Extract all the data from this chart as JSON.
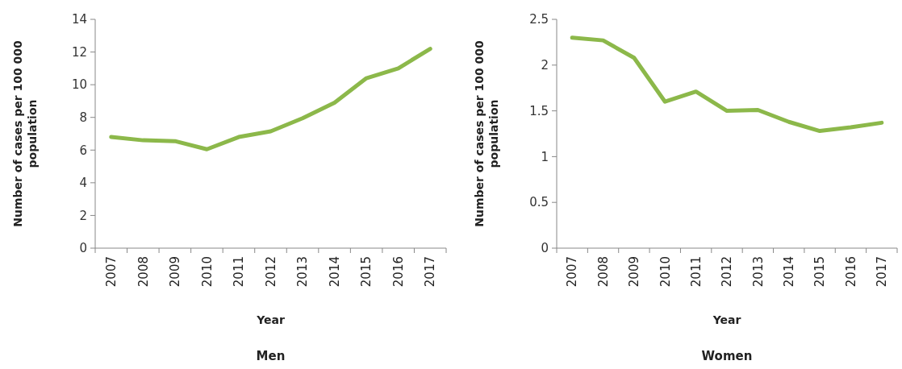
{
  "chart_data": [
    {
      "type": "line",
      "title": "Men",
      "xlabel": "Year",
      "ylabel": "Number of cases per 100 000 population",
      "categories": [
        "2007",
        "2008",
        "2009",
        "2010",
        "2011",
        "2012",
        "2013",
        "2014",
        "2015",
        "2016",
        "2017"
      ],
      "series": [
        {
          "color": "#8cb84a",
          "values": [
            6.8,
            6.6,
            6.55,
            6.05,
            6.8,
            7.15,
            7.95,
            8.9,
            10.4,
            11.0,
            12.2
          ]
        }
      ],
      "ylim": [
        0,
        14
      ],
      "yticks": [
        0,
        2,
        4,
        6,
        8,
        10,
        12,
        14
      ],
      "grid": false
    },
    {
      "type": "line",
      "title": "Women",
      "xlabel": "Year",
      "ylabel": "Number of cases per 100 000 population",
      "categories": [
        "2007",
        "2008",
        "2009",
        "2010",
        "2011",
        "2012",
        "2013",
        "2014",
        "2015",
        "2016",
        "2017"
      ],
      "series": [
        {
          "color": "#8cb84a",
          "values": [
            2.3,
            2.27,
            2.08,
            1.6,
            1.71,
            1.5,
            1.51,
            1.38,
            1.28,
            1.32,
            1.37
          ]
        }
      ],
      "ylim": [
        0,
        2.5
      ],
      "yticks": [
        0,
        0.5,
        1,
        1.5,
        2,
        2.5
      ],
      "grid": false
    }
  ]
}
